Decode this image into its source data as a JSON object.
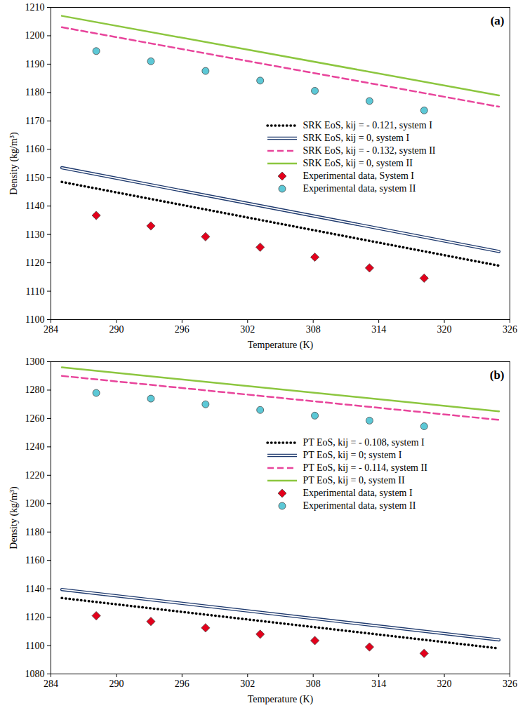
{
  "chart_data": [
    {
      "type": "line",
      "annotation": "(a)",
      "x_label": "Temperature (K)",
      "y_label": "Density (kg/m³)",
      "xlim": [
        284,
        326
      ],
      "xticks": [
        284,
        290,
        296,
        302,
        308,
        314,
        320,
        326
      ],
      "ylim": [
        1100,
        1210
      ],
      "yticks": [
        1100,
        1110,
        1120,
        1130,
        1140,
        1150,
        1160,
        1170,
        1180,
        1190,
        1200,
        1210
      ],
      "grid": false,
      "legend": "right",
      "series": [
        {
          "name": "SRK EoS, kij = - 0.121, system I",
          "type": "line",
          "line_style": "dotted",
          "color": "#000000",
          "x": [
            285,
            325
          ],
          "values": [
            1148.5,
            1119
          ]
        },
        {
          "name": "SRK EoS, kij = 0, system I",
          "type": "line",
          "line_style": "double",
          "color": "#1f3a6e",
          "x": [
            285,
            325
          ],
          "values": [
            1153.5,
            1124
          ]
        },
        {
          "name": "SRK EoS, kij = - 0.132, system II",
          "type": "line",
          "line_style": "dashed",
          "color": "#e8449b",
          "x": [
            285,
            325
          ],
          "values": [
            1203,
            1175
          ]
        },
        {
          "name": "SRK EoS, kij = 0, system II",
          "type": "line",
          "line_style": "solid",
          "color": "#8cc63f",
          "x": [
            285,
            325
          ],
          "values": [
            1207,
            1179
          ]
        },
        {
          "name": "Experimental data, System I",
          "type": "scatter",
          "marker": "diamond",
          "color": "#e3001b",
          "x": [
            288.15,
            293.15,
            298.15,
            303.15,
            308.15,
            313.15,
            318.15
          ],
          "values": [
            1136.7,
            1133,
            1129.2,
            1125.5,
            1122,
            1118.2,
            1114.6
          ]
        },
        {
          "name": "Experimental data, system II",
          "type": "scatter",
          "marker": "circle",
          "color": "#5cc8d6",
          "x": [
            288.15,
            293.15,
            298.15,
            303.15,
            308.15,
            313.15,
            318.15
          ],
          "values": [
            1194.6,
            1191,
            1187.6,
            1184.2,
            1180.6,
            1177,
            1173.7
          ]
        }
      ]
    },
    {
      "type": "line",
      "annotation": "(b)",
      "x_label": "Temperature (K)",
      "y_label": "Density (kg/m³)",
      "xlim": [
        284,
        326
      ],
      "xticks": [
        284,
        290,
        296,
        302,
        308,
        314,
        320,
        326
      ],
      "ylim": [
        1080,
        1300
      ],
      "yticks": [
        1080,
        1100,
        1120,
        1140,
        1160,
        1180,
        1200,
        1220,
        1240,
        1260,
        1280,
        1300
      ],
      "grid": false,
      "legend": "right",
      "series": [
        {
          "name": "PT EoS, kij = - 0.108, system I",
          "type": "line",
          "line_style": "dotted",
          "color": "#000000",
          "x": [
            285,
            325
          ],
          "values": [
            1133.5,
            1098
          ]
        },
        {
          "name": "PT EoS, kij = 0; system I",
          "type": "line",
          "line_style": "double",
          "color": "#1f3a6e",
          "x": [
            285,
            325
          ],
          "values": [
            1139.5,
            1104
          ]
        },
        {
          "name": "PT EoS, kij = - 0.114, system II",
          "type": "line",
          "line_style": "dashed",
          "color": "#e8449b",
          "x": [
            285,
            325
          ],
          "values": [
            1290,
            1259
          ]
        },
        {
          "name": "PT EoS, kij = 0, system II",
          "type": "line",
          "line_style": "solid",
          "color": "#8cc63f",
          "x": [
            285,
            325
          ],
          "values": [
            1296,
            1265
          ]
        },
        {
          "name": "Experimental data, system I",
          "type": "scatter",
          "marker": "diamond",
          "color": "#e3001b",
          "x": [
            288.15,
            293.15,
            298.15,
            303.15,
            308.15,
            313.15,
            318.15
          ],
          "values": [
            1121,
            1117,
            1112.5,
            1108,
            1103.5,
            1099,
            1094.5
          ]
        },
        {
          "name": "Experimental data, system II",
          "type": "scatter",
          "marker": "circle",
          "color": "#5cc8d6",
          "x": [
            288.15,
            293.15,
            298.15,
            303.15,
            308.15,
            313.15,
            318.15
          ],
          "values": [
            1278,
            1274,
            1270,
            1266,
            1262,
            1258.5,
            1254.5
          ]
        }
      ]
    }
  ]
}
